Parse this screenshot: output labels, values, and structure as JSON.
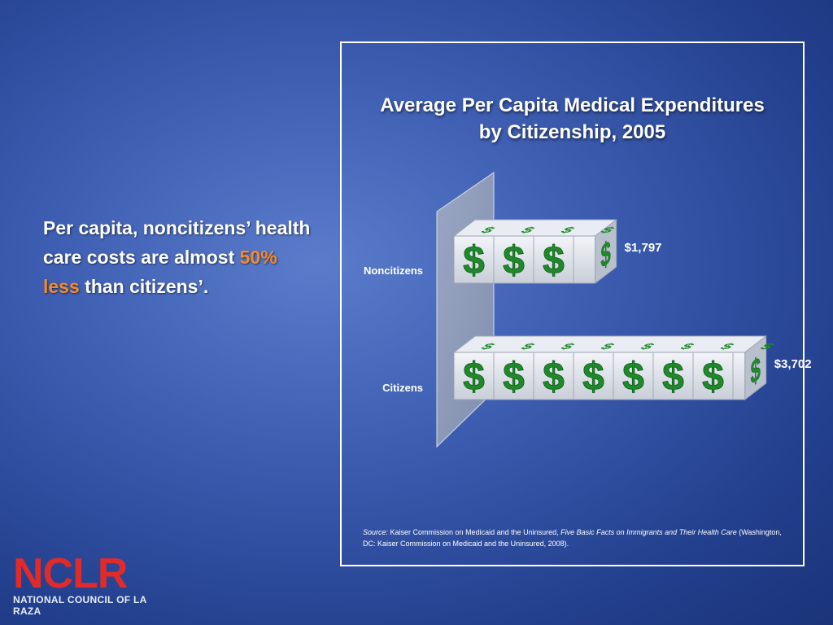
{
  "slide": {
    "text_before": "Per capita, noncitizens’ health care costs are almost ",
    "highlight": "50% less",
    "text_after": " than citizens’.",
    "highlight_color": "#f28a2e"
  },
  "chart_data": {
    "type": "bar",
    "orientation": "horizontal",
    "style": "3d-stacked-dollar-cubes",
    "title_lines": [
      "Average Per Capita Medical Expenditures",
      "by Citizenship, 2005"
    ],
    "categories": [
      "Noncitizens",
      "Citizens"
    ],
    "values": [
      1797,
      3702
    ],
    "value_labels": [
      "$1,797",
      "$3,702"
    ],
    "xlabel": "",
    "ylabel": "",
    "grid": false,
    "legend": "none",
    "unit_symbol": "$",
    "colors": {
      "cube": "#e3e7ee",
      "dollar": "#1f8a2a"
    }
  },
  "source": {
    "label": "Source:",
    "org": " Kaiser Commission on Medicaid and the Uninsured, ",
    "pub": "Five Basic Facts on Immigrants and Their Health Care",
    "rest": " (Washington, DC:  Kaiser Commission on Medicaid and the Uninsured, 2008)."
  },
  "logo": {
    "word": "NCLR",
    "subtitle": "NATIONAL COUNCIL OF LA RAZA",
    "color": "#e12a2a"
  }
}
